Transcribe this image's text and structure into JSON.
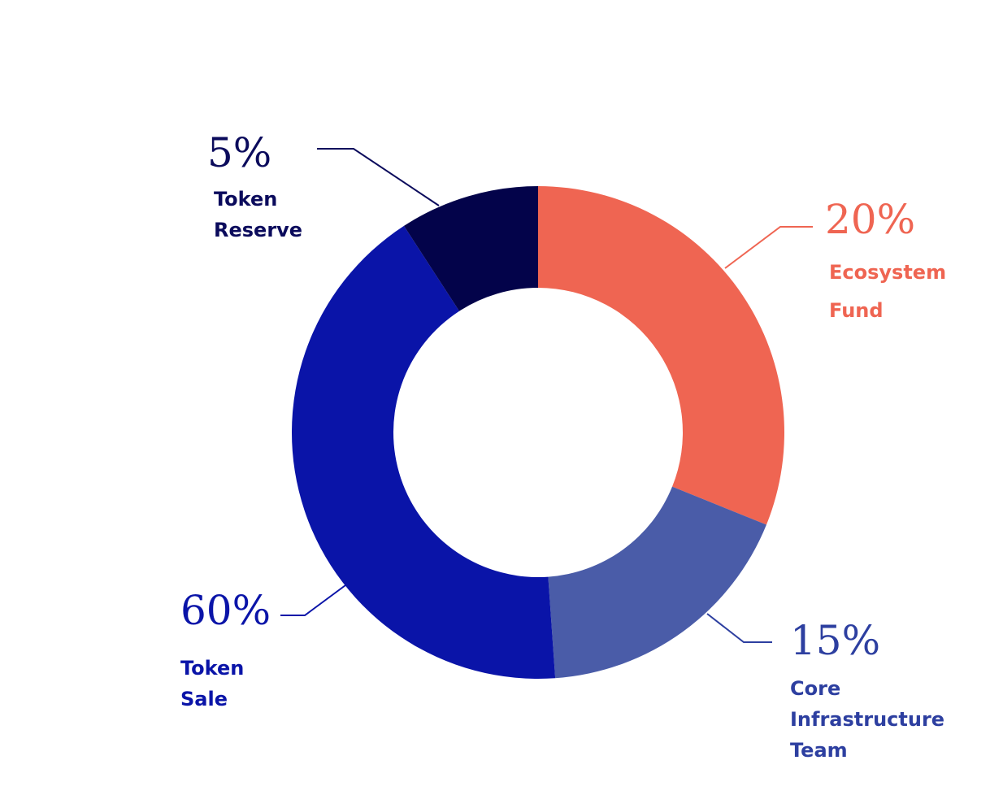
{
  "chart_data": {
    "type": "pie",
    "slices": [
      {
        "percent_label": "20%",
        "label_lines": [
          "Ecosystem",
          "Fund"
        ],
        "value": 20,
        "color": "#EF6552"
      },
      {
        "percent_label": "15%",
        "label_lines": [
          "Core",
          "Infrastructure",
          "Team"
        ],
        "value": 15,
        "color": "#4A5CA8"
      },
      {
        "percent_label": "60%",
        "label_lines": [
          "Token",
          "Sale"
        ],
        "value": 60,
        "color": "#0A14A8"
      },
      {
        "percent_label": "5%",
        "label_lines": [
          "Token",
          "Reserve"
        ],
        "value": 5,
        "color": "#03034A"
      }
    ],
    "legend": "callout labels around the donut"
  }
}
